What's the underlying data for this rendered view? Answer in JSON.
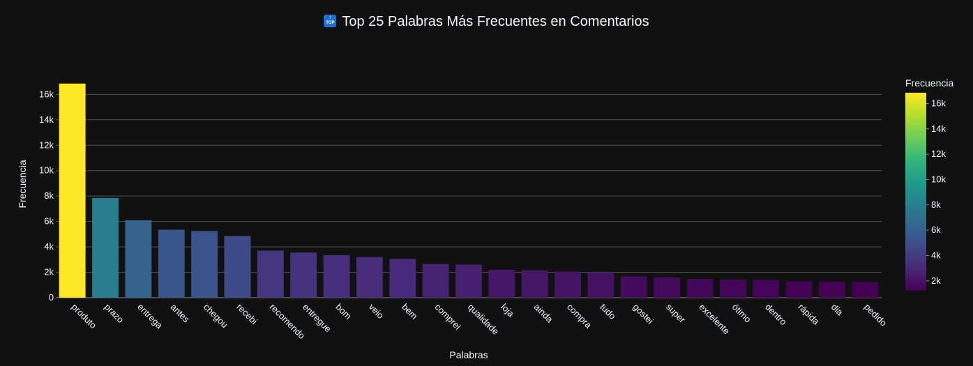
{
  "title": "Top 25 Palabras Más Frecuentes en Comentarios",
  "title_icon": "top-arrow-emoji",
  "badge_arrow": "↑",
  "badge_text": "TOP",
  "colors": {
    "background": "#111111",
    "grid": "#555555",
    "text": "#f2f5fa",
    "colorscale": [
      "#440154",
      "#482878",
      "#3e4989",
      "#31688e",
      "#26828e",
      "#1f9e89",
      "#35b779",
      "#6ece58",
      "#b5de2b",
      "#fde725"
    ]
  },
  "chart_data": {
    "type": "bar",
    "title": "Top 25 Palabras Más Frecuentes en Comentarios",
    "xlabel": "Palabras",
    "ylabel": "Frecuencia",
    "ylim": [
      0,
      17500
    ],
    "yticks": [
      0,
      2000,
      4000,
      6000,
      8000,
      10000,
      12000,
      14000,
      16000
    ],
    "ytick_labels": [
      "0",
      "2k",
      "4k",
      "6k",
      "8k",
      "10k",
      "12k",
      "14k",
      "16k"
    ],
    "categories": [
      "produto",
      "prazo",
      "entrega",
      "antes",
      "chegou",
      "recebi",
      "recomendo",
      "entregue",
      "bom",
      "veio",
      "bem",
      "comprei",
      "qualidade",
      "loja",
      "ainda",
      "compra",
      "tudo",
      "gostei",
      "super",
      "excelente",
      "ótimo",
      "dentro",
      "rápida",
      "dia",
      "pedido"
    ],
    "values": [
      16850,
      7850,
      6100,
      5350,
      5250,
      4850,
      3700,
      3550,
      3350,
      3200,
      3050,
      2650,
      2600,
      2200,
      2150,
      2050,
      2000,
      1680,
      1600,
      1480,
      1430,
      1400,
      1300,
      1250,
      1220
    ],
    "grid": true,
    "colorbar": {
      "title": "Frecuencia",
      "range": [
        1220,
        16850
      ],
      "ticks": [
        2000,
        4000,
        6000,
        8000,
        10000,
        12000,
        14000,
        16000
      ],
      "tick_labels": [
        "2k",
        "4k",
        "6k",
        "8k",
        "10k",
        "12k",
        "14k",
        "16k"
      ]
    }
  }
}
